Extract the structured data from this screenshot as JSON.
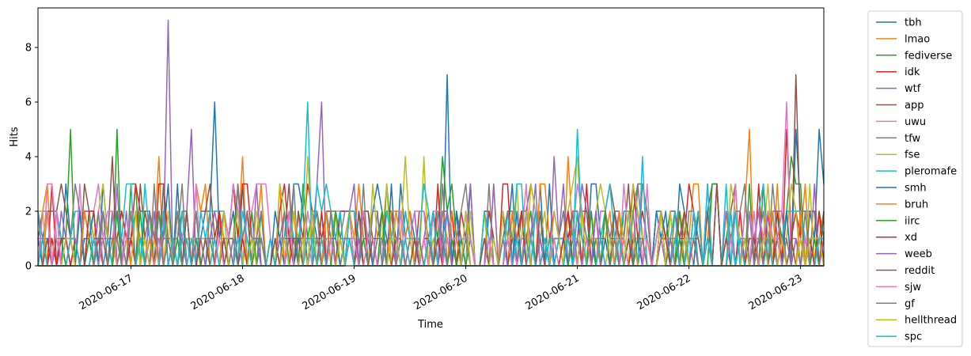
{
  "chart_data": {
    "type": "line",
    "title": "",
    "xlabel": "Time",
    "ylabel": "Hits",
    "ylim": [
      0,
      9.45
    ],
    "xlim": [
      "2020-06-16T04:00",
      "2020-06-23T05:00"
    ],
    "grid": false,
    "legend_placement": "outside-right",
    "x_ticks": [
      "2020-06-17",
      "2020-06-18",
      "2020-06-19",
      "2020-06-20",
      "2020-06-21",
      "2020-06-22",
      "2020-06-23"
    ],
    "y_ticks": [
      0,
      2,
      4,
      6,
      8
    ],
    "series": [
      {
        "name": "tbh",
        "color": "#1f77b4",
        "peaks": [
          [
            "2020-06-17 18:00",
            6
          ],
          [
            "2020-06-19 20:00",
            7
          ],
          [
            "2020-06-22 23:00",
            5
          ],
          [
            "2020-06-23 04:00",
            5
          ]
        ]
      },
      {
        "name": "lmao",
        "color": "#ff7f0e",
        "peaks": [
          [
            "2020-06-17 06:00",
            4
          ],
          [
            "2020-06-18 00:00",
            4
          ],
          [
            "2020-06-20 22:00",
            4
          ],
          [
            "2020-06-22 13:00",
            5
          ]
        ]
      },
      {
        "name": "fediverse",
        "color": "#2ca02c",
        "peaks": [
          [
            "2020-06-16 11:00",
            5
          ],
          [
            "2020-06-16 21:00",
            5
          ],
          [
            "2020-06-19 19:00",
            4
          ],
          [
            "2020-06-22 22:00",
            4
          ]
        ]
      },
      {
        "name": "idk",
        "color": "#d62728",
        "peaks": [
          [
            "2020-06-16 07:00",
            3
          ],
          [
            "2020-06-18 00:00",
            3
          ],
          [
            "2020-06-20 08:00",
            3
          ],
          [
            "2020-06-22 21:00",
            5
          ]
        ]
      },
      {
        "name": "wtf",
        "color": "#9467bd",
        "peaks": [
          [
            "2020-06-17 08:00",
            9
          ],
          [
            "2020-06-17 13:00",
            5
          ],
          [
            "2020-06-18 17:00",
            6
          ],
          [
            "2020-06-20 19:00",
            4
          ]
        ]
      },
      {
        "name": "app",
        "color": "#8c564b",
        "peaks": [
          [
            "2020-06-16 20:00",
            4
          ],
          [
            "2020-06-17 17:00",
            3
          ],
          [
            "2020-06-22 23:00",
            7
          ]
        ]
      },
      {
        "name": "uwu",
        "color": "#e377c2",
        "peaks": [
          [
            "2020-06-18 05:00",
            3
          ],
          [
            "2020-06-21 00:00",
            3
          ],
          [
            "2020-06-22 21:00",
            6
          ]
        ]
      },
      {
        "name": "tfw",
        "color": "#7f7f7f",
        "peaks": [
          [
            "2020-06-16 12:00",
            3
          ],
          [
            "2020-06-17 23:00",
            3
          ],
          [
            "2020-06-22 18:00",
            3
          ]
        ]
      },
      {
        "name": "fse",
        "color": "#bcbd22",
        "peaks": [
          [
            "2020-06-18 14:00",
            4
          ],
          [
            "2020-06-19 11:00",
            4
          ],
          [
            "2020-06-19 15:00",
            4
          ],
          [
            "2020-06-21 00:00",
            4
          ]
        ]
      },
      {
        "name": "pleromafe",
        "color": "#17becf",
        "peaks": [
          [
            "2020-06-18 14:00",
            6
          ],
          [
            "2020-06-21 00:00",
            5
          ],
          [
            "2020-06-21 14:00",
            4
          ]
        ]
      },
      {
        "name": "smh",
        "color": "#1f77b4",
        "peaks": [
          [
            "2020-06-16 13:00",
            2
          ]
        ]
      },
      {
        "name": "bruh",
        "color": "#ff7f0e",
        "peaks": [
          [
            "2020-06-16 14:00",
            2
          ]
        ]
      },
      {
        "name": "iirc",
        "color": "#2ca02c",
        "peaks": [
          [
            "2020-06-16 15:00",
            1
          ]
        ]
      },
      {
        "name": "xd",
        "color": "#d62728",
        "peaks": [
          [
            "2020-06-16 16:00",
            2
          ]
        ]
      },
      {
        "name": "weeb",
        "color": "#9467bd",
        "peaks": [
          [
            "2020-06-16 17:00",
            2
          ]
        ]
      },
      {
        "name": "reddit",
        "color": "#8c564b",
        "peaks": [
          [
            "2020-06-16 18:00",
            1
          ]
        ]
      },
      {
        "name": "sjw",
        "color": "#e377c2",
        "peaks": [
          [
            "2020-06-16 19:00",
            2
          ]
        ]
      },
      {
        "name": "gf",
        "color": "#7f7f7f",
        "peaks": [
          [
            "2020-06-17 00:00",
            2
          ]
        ]
      },
      {
        "name": "hellthread",
        "color": "#bcbd22",
        "peaks": [
          [
            "2020-06-17 01:00",
            2
          ]
        ]
      },
      {
        "name": "spc",
        "color": "#17becf",
        "peaks": [
          [
            "2020-06-17 02:00",
            1
          ]
        ]
      }
    ]
  }
}
